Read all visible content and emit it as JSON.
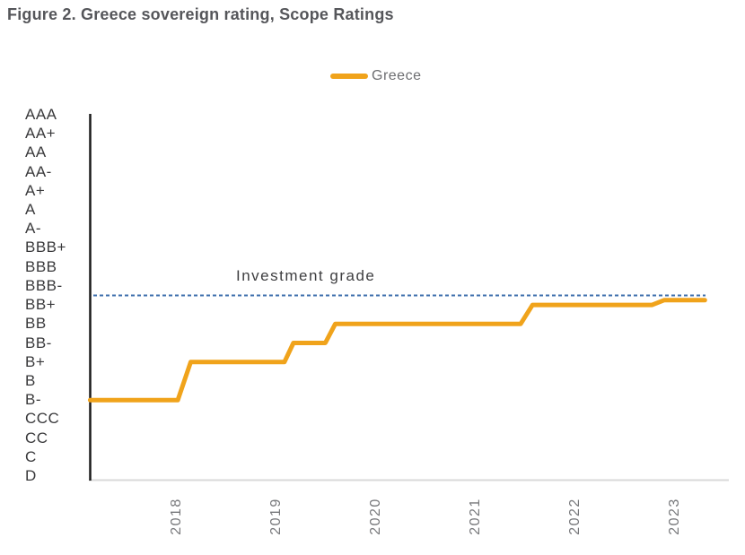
{
  "title": "Figure 2. Greece sovereign rating, Scope Ratings",
  "legend": {
    "series_label": "Greece"
  },
  "annotation": {
    "investment_grade_label": "Investment grade"
  },
  "colors": {
    "series_orange": "#F0A31B",
    "reference_blue": "#3E6FAC",
    "y_axis_line": "#1A1A1A",
    "x_axis_line": "#D9D9D9",
    "title_gray": "#55565A"
  },
  "chart_data": {
    "type": "line",
    "title": "Figure 2. Greece sovereign rating, Scope Ratings",
    "subtitle": "",
    "xlabel": "",
    "ylabel": "",
    "grid": false,
    "legend_position": "top-center",
    "x_ticks": [
      "2018",
      "2019",
      "2020",
      "2021",
      "2022",
      "2023"
    ],
    "y_categories_top_to_bottom": [
      "AAA",
      "AA+",
      "AA",
      "AA-",
      "A+",
      "A",
      "A-",
      "BBB+",
      "BBB",
      "BBB-",
      "BB+",
      "BB",
      "BB-",
      "B+",
      "B",
      "B-",
      "CCC",
      "CC",
      "C",
      "D"
    ],
    "series": [
      {
        "name": "Greece",
        "color": "#F0A31B",
        "style": "step",
        "segments": [
          {
            "rating": "B-",
            "from": 2017.13,
            "to": 2018.01
          },
          {
            "rating": "B+",
            "from": 2018.14,
            "to": 2019.08
          },
          {
            "rating": "BB-",
            "from": 2019.17,
            "to": 2019.49
          },
          {
            "rating": "BB",
            "from": 2019.59,
            "to": 2021.45
          },
          {
            "rating": "BB+",
            "from": 2021.57,
            "to": 2022.77
          },
          {
            "rating": "BB+",
            "outlook_offset": 0.25,
            "note": "drawn slightly above BB+, just below investment-grade line",
            "from": 2022.89,
            "to": 2023.3
          }
        ]
      }
    ],
    "reference_line": {
      "label": "Investment grade",
      "between": [
        "BBB-",
        "BB+"
      ],
      "style": "dashed",
      "color": "#3E6FAC"
    }
  }
}
